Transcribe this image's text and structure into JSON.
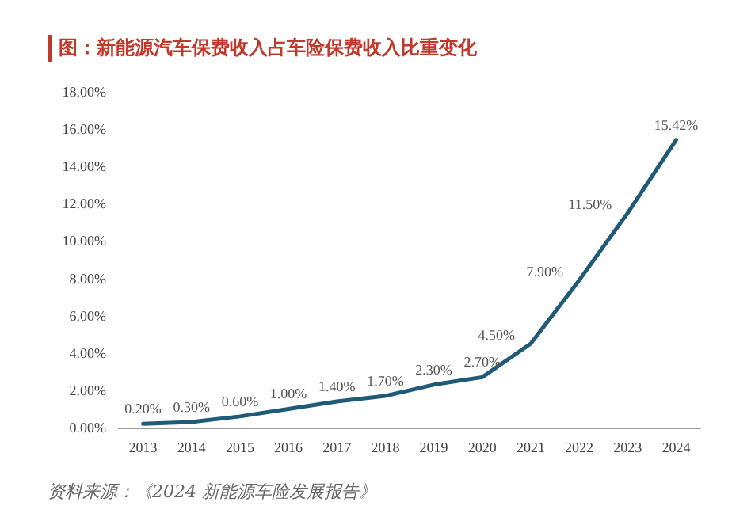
{
  "chart_data": {
    "type": "line",
    "title": "图：新能源汽车保费收入占车险保费收入比重变化",
    "categories": [
      "2013",
      "2014",
      "2015",
      "2016",
      "2017",
      "2018",
      "2019",
      "2020",
      "2021",
      "2022",
      "2023",
      "2024"
    ],
    "series": [
      {
        "color": "#1f5b78",
        "values": [
          0.2,
          0.3,
          0.6,
          1.0,
          1.4,
          1.7,
          2.3,
          2.7,
          4.5,
          7.9,
          11.5,
          15.42
        ],
        "value_labels": [
          "0.20%",
          "0.30%",
          "0.60%",
          "1.00%",
          "1.40%",
          "1.70%",
          "2.30%",
          "2.70%",
          "4.50%",
          "7.90%",
          "11.50%",
          "15.42%"
        ]
      }
    ],
    "ylim": [
      0,
      18
    ],
    "yticks": [
      {
        "value": 0,
        "label": "0.00%"
      },
      {
        "value": 2,
        "label": "2.00%"
      },
      {
        "value": 4,
        "label": "4.00%"
      },
      {
        "value": 6,
        "label": "6.00%"
      },
      {
        "value": 8,
        "label": "8.00%"
      },
      {
        "value": 10,
        "label": "10.00%"
      },
      {
        "value": 12,
        "label": "12.00%"
      },
      {
        "value": 14,
        "label": "14.00%"
      },
      {
        "value": 16,
        "label": "16.00%"
      },
      {
        "value": 18,
        "label": "18.00%"
      }
    ],
    "grid": false,
    "marker": "none",
    "line_style": "solid",
    "annotations": [
      "资料来源：《2024 新能源车险发展报告》"
    ]
  }
}
